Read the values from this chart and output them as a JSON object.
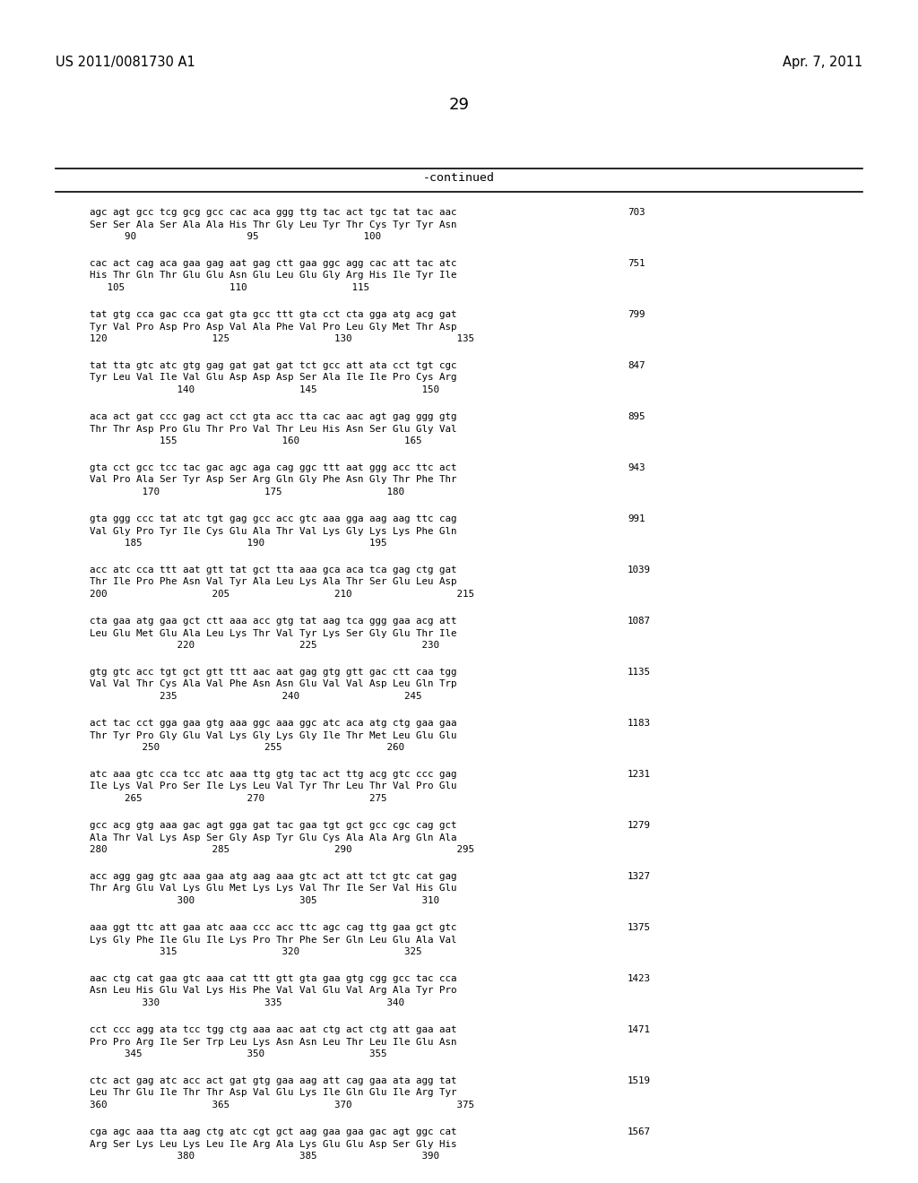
{
  "header_left": "US 2011/0081730 A1",
  "header_right": "Apr. 7, 2011",
  "page_number": "29",
  "continued_label": "-continued",
  "background_color": "#ffffff",
  "text_color": "#000000",
  "sequences": [
    {
      "dna": "agc agt gcc tcg gcg gcc cac aca ggg ttg tac act tgc tat tac aac",
      "aa": "Ser Ser Ala Ser Ala Ala His Thr Gly Leu Tyr Thr Cys Tyr Tyr Asn",
      "pos": "      90                   95                  100",
      "num": "703"
    },
    {
      "dna": "cac act cag aca gaa gag aat gag ctt gaa ggc agg cac att tac atc",
      "aa": "His Thr Gln Thr Glu Glu Asn Glu Leu Glu Gly Arg His Ile Tyr Ile",
      "pos": "   105                  110                  115",
      "num": "751"
    },
    {
      "dna": "tat gtg cca gac cca gat gta gcc ttt gta cct cta gga atg acg gat",
      "aa": "Tyr Val Pro Asp Pro Asp Val Ala Phe Val Pro Leu Gly Met Thr Asp",
      "pos": "120                  125                  130                  135",
      "num": "799"
    },
    {
      "dna": "tat tta gtc atc gtg gag gat gat gat tct gcc att ata cct tgt cgc",
      "aa": "Tyr Leu Val Ile Val Glu Asp Asp Asp Ser Ala Ile Ile Pro Cys Arg",
      "pos": "               140                  145                  150",
      "num": "847"
    },
    {
      "dna": "aca act gat ccc gag act cct gta acc tta cac aac agt gag ggg gtg",
      "aa": "Thr Thr Asp Pro Glu Thr Pro Val Thr Leu His Asn Ser Glu Gly Val",
      "pos": "            155                  160                  165",
      "num": "895"
    },
    {
      "dna": "gta cct gcc tcc tac gac agc aga cag ggc ttt aat ggg acc ttc act",
      "aa": "Val Pro Ala Ser Tyr Asp Ser Arg Gln Gly Phe Asn Gly Thr Phe Thr",
      "pos": "         170                  175                  180",
      "num": "943"
    },
    {
      "dna": "gta ggg ccc tat atc tgt gag gcc acc gtc aaa gga aag aag ttc cag",
      "aa": "Val Gly Pro Tyr Ile Cys Glu Ala Thr Val Lys Gly Lys Lys Phe Gln",
      "pos": "      185                  190                  195",
      "num": "991"
    },
    {
      "dna": "acc atc cca ttt aat gtt tat gct tta aaa gca aca tca gag ctg gat",
      "aa": "Thr Ile Pro Phe Asn Val Tyr Ala Leu Lys Ala Thr Ser Glu Leu Asp",
      "pos": "200                  205                  210                  215",
      "num": "1039"
    },
    {
      "dna": "cta gaa atg gaa gct ctt aaa acc gtg tat aag tca ggg gaa acg att",
      "aa": "Leu Glu Met Glu Ala Leu Lys Thr Val Tyr Lys Ser Gly Glu Thr Ile",
      "pos": "               220                  225                  230",
      "num": "1087"
    },
    {
      "dna": "gtg gtc acc tgt gct gtt ttt aac aat gag gtg gtt gac ctt caa tgg",
      "aa": "Val Val Thr Cys Ala Val Phe Asn Asn Glu Val Val Asp Leu Gln Trp",
      "pos": "            235                  240                  245",
      "num": "1135"
    },
    {
      "dna": "act tac cct gga gaa gtg aaa ggc aaa ggc atc aca atg ctg gaa gaa",
      "aa": "Thr Tyr Pro Gly Glu Val Lys Gly Lys Gly Ile Thr Met Leu Glu Glu",
      "pos": "         250                  255                  260",
      "num": "1183"
    },
    {
      "dna": "atc aaa gtc cca tcc atc aaa ttg gtg tac act ttg acg gtc ccc gag",
      "aa": "Ile Lys Val Pro Ser Ile Lys Leu Val Tyr Thr Leu Thr Val Pro Glu",
      "pos": "      265                  270                  275",
      "num": "1231"
    },
    {
      "dna": "gcc acg gtg aaa gac agt gga gat tac gaa tgt gct gcc cgc cag gct",
      "aa": "Ala Thr Val Lys Asp Ser Gly Asp Tyr Glu Cys Ala Ala Arg Gln Ala",
      "pos": "280                  285                  290                  295",
      "num": "1279"
    },
    {
      "dna": "acc agg gag gtc aaa gaa atg aag aaa gtc act att tct gtc cat gag",
      "aa": "Thr Arg Glu Val Lys Glu Met Lys Lys Val Thr Ile Ser Val His Glu",
      "pos": "               300                  305                  310",
      "num": "1327"
    },
    {
      "dna": "aaa ggt ttc att gaa atc aaa ccc acc ttc agc cag ttg gaa gct gtc",
      "aa": "Lys Gly Phe Ile Glu Ile Lys Pro Thr Phe Ser Gln Leu Glu Ala Val",
      "pos": "            315                  320                  325",
      "num": "1375"
    },
    {
      "dna": "aac ctg cat gaa gtc aaa cat ttt gtt gta gaa gtg cgg gcc tac cca",
      "aa": "Asn Leu His Glu Val Lys His Phe Val Val Glu Val Arg Ala Tyr Pro",
      "pos": "         330                  335                  340",
      "num": "1423"
    },
    {
      "dna": "cct ccc agg ata tcc tgg ctg aaa aac aat ctg act ctg att gaa aat",
      "aa": "Pro Pro Arg Ile Ser Trp Leu Lys Asn Asn Leu Thr Leu Ile Glu Asn",
      "pos": "      345                  350                  355",
      "num": "1471"
    },
    {
      "dna": "ctc act gag atc acc act gat gtg gaa aag att cag gaa ata agg tat",
      "aa": "Leu Thr Glu Ile Thr Thr Asp Val Glu Lys Ile Gln Glu Ile Arg Tyr",
      "pos": "360                  365                  370                  375",
      "num": "1519"
    },
    {
      "dna": "cga agc aaa tta aag ctg atc cgt gct aag gaa gaa gac agt ggc cat",
      "aa": "Arg Ser Lys Leu Lys Leu Ile Arg Ala Lys Glu Glu Asp Ser Gly His",
      "pos": "               380                  385                  390",
      "num": "1567"
    }
  ]
}
